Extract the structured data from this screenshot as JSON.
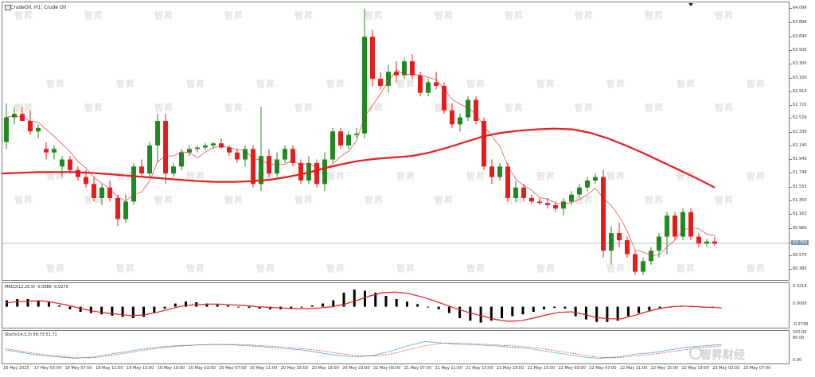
{
  "chart": {
    "title": "CrudeOil, H1:  Crude Oil",
    "price_tag": "60.754",
    "price_ticks": [
      "64.099",
      "63.898",
      "63.690",
      "63.500",
      "63.300",
      "63.100",
      "62.910",
      "62.720",
      "62.529",
      "62.330",
      "62.140",
      "61.940",
      "61.748",
      "61.553",
      "61.350",
      "61.163",
      "60.960",
      "60.754",
      "60.570",
      "60.380"
    ],
    "macd_title": "MACD(12,26,9) -0.0086 -0.0270",
    "macd_ticks": [
      "0.3216",
      "0.0000",
      "-0.2736"
    ],
    "stoch_title": "Stoch(14,3,3) 59.73 51.71",
    "stoch_ticks": [
      "100.00",
      "80.00",
      "0.00"
    ],
    "date_labels": [
      "16 May 2025",
      "17 May 03:00",
      "19 May 07:00",
      "19 May 11:00",
      "19 May 15:00",
      "19 May 19:00",
      "20 May 03:00",
      "20 May 07:00",
      "20 May 11:00",
      "20 May 15:00",
      "20 May 19:00",
      "20 May 23:00",
      "21 May 03:00",
      "21 May 07:00",
      "21 May 11:00",
      "21 May 15:00",
      "21 May 19:00",
      "21 May 23:00",
      "22 May 03:00",
      "22 May 07:00",
      "22 May 11:00",
      "22 May 15:00",
      "22 May 19:00",
      "23 May 03:00",
      "23 May 07:00"
    ],
    "watermark": "智昇",
    "brand": "智昇财经",
    "colors": {
      "up": "#1f8a1f",
      "down": "#e81c1c",
      "ma_slow": "#e81c1c",
      "macd_signal": "#e81c1c",
      "stoch_main": "#39a9c9",
      "stoch_signal": "#e81c1c",
      "price_line": "#7e97b0"
    }
  },
  "chart_data": {
    "type": "candlestick",
    "title": "CrudeOil, H1",
    "candles": [
      {
        "o": 62.2,
        "h": 62.75,
        "l": 62.1,
        "c": 62.55
      },
      {
        "o": 62.55,
        "h": 62.7,
        "l": 62.45,
        "c": 62.6
      },
      {
        "o": 62.6,
        "h": 62.7,
        "l": 62.5,
        "c": 62.5
      },
      {
        "o": 62.5,
        "h": 62.65,
        "l": 62.3,
        "c": 62.35
      },
      {
        "o": 62.35,
        "h": 62.45,
        "l": 62.25,
        "c": 62.4
      },
      {
        "o": 62.1,
        "h": 62.2,
        "l": 61.95,
        "c": 62.05
      },
      {
        "o": 62.05,
        "h": 62.15,
        "l": 61.95,
        "c": 62.1
      },
      {
        "o": 61.85,
        "h": 62.0,
        "l": 61.7,
        "c": 61.95
      },
      {
        "o": 61.95,
        "h": 62.0,
        "l": 61.75,
        "c": 61.8
      },
      {
        "o": 61.8,
        "h": 61.85,
        "l": 61.65,
        "c": 61.7
      },
      {
        "o": 61.7,
        "h": 61.8,
        "l": 61.55,
        "c": 61.6
      },
      {
        "o": 61.6,
        "h": 61.7,
        "l": 61.35,
        "c": 61.4
      },
      {
        "o": 61.4,
        "h": 61.6,
        "l": 61.3,
        "c": 61.55
      },
      {
        "o": 61.55,
        "h": 61.65,
        "l": 61.35,
        "c": 61.4
      },
      {
        "o": 61.4,
        "h": 61.45,
        "l": 61.0,
        "c": 61.1
      },
      {
        "o": 61.1,
        "h": 61.45,
        "l": 61.05,
        "c": 61.35
      },
      {
        "o": 61.35,
        "h": 61.9,
        "l": 61.3,
        "c": 61.85
      },
      {
        "o": 61.85,
        "h": 61.95,
        "l": 61.7,
        "c": 61.75
      },
      {
        "o": 61.75,
        "h": 62.2,
        "l": 61.7,
        "c": 62.15
      },
      {
        "o": 62.15,
        "h": 62.6,
        "l": 61.9,
        "c": 62.5
      },
      {
        "o": 62.5,
        "h": 62.6,
        "l": 61.6,
        "c": 61.75
      },
      {
        "o": 61.75,
        "h": 61.9,
        "l": 61.7,
        "c": 61.85
      },
      {
        "o": 61.85,
        "h": 62.1,
        "l": 61.8,
        "c": 62.05
      },
      {
        "o": 62.05,
        "h": 62.15,
        "l": 62.0,
        "c": 62.1
      },
      {
        "o": 62.1,
        "h": 62.15,
        "l": 62.05,
        "c": 62.12
      },
      {
        "o": 62.12,
        "h": 62.18,
        "l": 62.08,
        "c": 62.15
      },
      {
        "o": 62.15,
        "h": 62.2,
        "l": 62.1,
        "c": 62.18
      },
      {
        "o": 62.18,
        "h": 62.25,
        "l": 62.1,
        "c": 62.12
      },
      {
        "o": 62.12,
        "h": 62.15,
        "l": 62.0,
        "c": 62.05
      },
      {
        "o": 62.05,
        "h": 62.1,
        "l": 61.9,
        "c": 61.95
      },
      {
        "o": 61.95,
        "h": 62.15,
        "l": 61.85,
        "c": 62.1
      },
      {
        "o": 62.1,
        "h": 62.15,
        "l": 61.55,
        "c": 61.6
      },
      {
        "o": 61.6,
        "h": 62.7,
        "l": 61.5,
        "c": 62.0
      },
      {
        "o": 62.0,
        "h": 62.1,
        "l": 61.7,
        "c": 61.75
      },
      {
        "o": 61.75,
        "h": 62.05,
        "l": 61.7,
        "c": 61.95
      },
      {
        "o": 61.95,
        "h": 62.15,
        "l": 61.9,
        "c": 62.1
      },
      {
        "o": 62.1,
        "h": 62.15,
        "l": 61.85,
        "c": 61.9
      },
      {
        "o": 61.9,
        "h": 61.95,
        "l": 61.6,
        "c": 61.65
      },
      {
        "o": 61.65,
        "h": 62.0,
        "l": 61.6,
        "c": 61.9
      },
      {
        "o": 61.9,
        "h": 61.95,
        "l": 61.55,
        "c": 61.6
      },
      {
        "o": 61.6,
        "h": 62.05,
        "l": 61.5,
        "c": 61.95
      },
      {
        "o": 61.95,
        "h": 62.4,
        "l": 61.9,
        "c": 62.35
      },
      {
        "o": 62.35,
        "h": 62.4,
        "l": 62.1,
        "c": 62.15
      },
      {
        "o": 62.15,
        "h": 62.35,
        "l": 62.1,
        "c": 62.3
      },
      {
        "o": 62.3,
        "h": 62.4,
        "l": 62.25,
        "c": 62.32
      },
      {
        "o": 62.32,
        "h": 64.1,
        "l": 62.25,
        "c": 63.7
      },
      {
        "o": 63.7,
        "h": 63.8,
        "l": 63.0,
        "c": 63.1
      },
      {
        "o": 63.1,
        "h": 63.2,
        "l": 62.95,
        "c": 63.0
      },
      {
        "o": 63.0,
        "h": 63.3,
        "l": 62.9,
        "c": 63.2
      },
      {
        "o": 63.2,
        "h": 63.35,
        "l": 63.05,
        "c": 63.15
      },
      {
        "o": 63.15,
        "h": 63.4,
        "l": 63.1,
        "c": 63.35
      },
      {
        "o": 63.35,
        "h": 63.45,
        "l": 63.1,
        "c": 63.15
      },
      {
        "o": 63.15,
        "h": 63.2,
        "l": 62.85,
        "c": 62.9
      },
      {
        "o": 62.9,
        "h": 63.1,
        "l": 62.85,
        "c": 63.05
      },
      {
        "o": 63.05,
        "h": 63.2,
        "l": 62.95,
        "c": 63.0
      },
      {
        "o": 63.0,
        "h": 63.05,
        "l": 62.6,
        "c": 62.65
      },
      {
        "o": 62.65,
        "h": 62.75,
        "l": 62.4,
        "c": 62.45
      },
      {
        "o": 62.45,
        "h": 62.6,
        "l": 62.35,
        "c": 62.55
      },
      {
        "o": 62.55,
        "h": 62.85,
        "l": 62.5,
        "c": 62.8
      },
      {
        "o": 62.8,
        "h": 62.85,
        "l": 62.45,
        "c": 62.5
      },
      {
        "o": 62.5,
        "h": 62.55,
        "l": 61.8,
        "c": 61.85
      },
      {
        "o": 61.85,
        "h": 61.95,
        "l": 61.6,
        "c": 61.7
      },
      {
        "o": 61.7,
        "h": 61.9,
        "l": 61.65,
        "c": 61.85
      },
      {
        "o": 61.85,
        "h": 61.9,
        "l": 61.35,
        "c": 61.4
      },
      {
        "o": 61.4,
        "h": 61.65,
        "l": 61.35,
        "c": 61.55
      },
      {
        "o": 61.55,
        "h": 61.6,
        "l": 61.35,
        "c": 61.4
      },
      {
        "o": 61.4,
        "h": 61.45,
        "l": 61.32,
        "c": 61.35
      },
      {
        "o": 61.35,
        "h": 61.4,
        "l": 61.3,
        "c": 61.33
      },
      {
        "o": 61.33,
        "h": 61.4,
        "l": 61.25,
        "c": 61.3
      },
      {
        "o": 61.3,
        "h": 61.35,
        "l": 61.2,
        "c": 61.25
      },
      {
        "o": 61.25,
        "h": 61.4,
        "l": 61.15,
        "c": 61.35
      },
      {
        "o": 61.35,
        "h": 61.5,
        "l": 61.3,
        "c": 61.45
      },
      {
        "o": 61.45,
        "h": 61.6,
        "l": 61.4,
        "c": 61.55
      },
      {
        "o": 61.55,
        "h": 61.7,
        "l": 61.5,
        "c": 61.65
      },
      {
        "o": 61.65,
        "h": 61.75,
        "l": 61.6,
        "c": 61.7
      },
      {
        "o": 61.7,
        "h": 61.8,
        "l": 60.55,
        "c": 60.65
      },
      {
        "o": 60.65,
        "h": 61.0,
        "l": 60.45,
        "c": 60.9
      },
      {
        "o": 60.9,
        "h": 61.05,
        "l": 60.7,
        "c": 60.8
      },
      {
        "o": 60.8,
        "h": 60.85,
        "l": 60.55,
        "c": 60.6
      },
      {
        "o": 60.6,
        "h": 60.65,
        "l": 60.3,
        "c": 60.35
      },
      {
        "o": 60.35,
        "h": 60.55,
        "l": 60.3,
        "c": 60.5
      },
      {
        "o": 60.5,
        "h": 60.7,
        "l": 60.45,
        "c": 60.65
      },
      {
        "o": 60.65,
        "h": 60.9,
        "l": 60.55,
        "c": 60.85
      },
      {
        "o": 60.85,
        "h": 61.2,
        "l": 60.6,
        "c": 61.15
      },
      {
        "o": 61.15,
        "h": 61.2,
        "l": 60.8,
        "c": 60.85
      },
      {
        "o": 60.85,
        "h": 61.25,
        "l": 60.8,
        "c": 61.2
      },
      {
        "o": 61.2,
        "h": 61.25,
        "l": 60.8,
        "c": 60.85
      },
      {
        "o": 60.85,
        "h": 60.9,
        "l": 60.7,
        "c": 60.75
      },
      {
        "o": 60.75,
        "h": 60.82,
        "l": 60.7,
        "c": 60.78
      },
      {
        "o": 60.78,
        "h": 60.85,
        "l": 60.72,
        "c": 60.75
      }
    ],
    "ma_slow": [
      61.75,
      61.76,
      61.77,
      61.77,
      61.77,
      61.76,
      61.74,
      61.72,
      61.7,
      61.68,
      61.66,
      61.64,
      61.63,
      61.63,
      61.64,
      61.66,
      61.7,
      61.75,
      61.82,
      61.88,
      61.93,
      61.96,
      61.98,
      62.0,
      62.05,
      62.12,
      62.2,
      62.28,
      62.33,
      62.36,
      62.38,
      62.39,
      62.38,
      62.33,
      62.25,
      62.15,
      62.04,
      61.92,
      61.8,
      61.68,
      61.55
    ],
    "macd_histogram": [
      0.1,
      0.12,
      0.12,
      0.1,
      0.07,
      0.02,
      -0.04,
      -0.08,
      -0.1,
      -0.12,
      -0.14,
      -0.16,
      -0.18,
      -0.16,
      -0.1,
      -0.03,
      0.05,
      0.08,
      0.07,
      0.05,
      0.03,
      0.02,
      0.0,
      -0.02,
      -0.03,
      -0.04,
      -0.04,
      -0.03,
      -0.01,
      0.02,
      0.05,
      0.1,
      0.22,
      0.27,
      0.25,
      0.22,
      0.17,
      0.12,
      0.08,
      0.04,
      0.0,
      -0.04,
      -0.1,
      -0.18,
      -0.22,
      -0.25,
      -0.22,
      -0.18,
      -0.15,
      -0.12,
      -0.08,
      -0.04,
      -0.02,
      -0.03,
      -0.15,
      -0.2,
      -0.24,
      -0.24,
      -0.22,
      -0.15,
      -0.1,
      -0.06,
      -0.02,
      0.0,
      0.01,
      0.01,
      0.0,
      -0.01
    ],
    "macd_signal": [
      0.06,
      0.08,
      0.09,
      0.09,
      0.06,
      0.02,
      -0.03,
      -0.07,
      -0.1,
      -0.12,
      -0.14,
      -0.13,
      -0.09,
      -0.04,
      0.01,
      0.03,
      0.04,
      0.04,
      0.03,
      0.02,
      0.0,
      -0.01,
      -0.02,
      -0.03,
      -0.03,
      -0.02,
      0.0,
      0.04,
      0.1,
      0.17,
      0.22,
      0.23,
      0.21,
      0.16,
      0.1,
      0.03,
      -0.04,
      -0.1,
      -0.15,
      -0.2,
      -0.23,
      -0.22,
      -0.18,
      -0.13,
      -0.09,
      -0.08,
      -0.12,
      -0.17,
      -0.19,
      -0.19,
      -0.14,
      -0.08,
      -0.03,
      0.0,
      0.01,
      0.0,
      -0.01,
      -0.02
    ],
    "stoch_main": [
      40,
      30,
      20,
      15,
      10,
      15,
      25,
      35,
      45,
      52,
      56,
      58,
      60,
      58,
      55,
      50,
      45,
      40,
      30,
      20,
      15,
      20,
      35,
      55,
      70,
      65,
      60,
      58,
      55,
      50,
      45,
      35,
      25,
      15,
      10,
      15,
      25,
      30,
      40,
      50,
      55,
      60
    ],
    "stoch_signal": [
      45,
      35,
      25,
      18,
      12,
      12,
      20,
      30,
      40,
      48,
      54,
      58,
      60,
      60,
      58,
      54,
      50,
      45,
      38,
      28,
      20,
      18,
      25,
      40,
      55,
      65,
      65,
      62,
      58,
      55,
      50,
      42,
      32,
      22,
      14,
      12,
      18,
      25,
      33,
      42,
      50,
      55
    ]
  }
}
